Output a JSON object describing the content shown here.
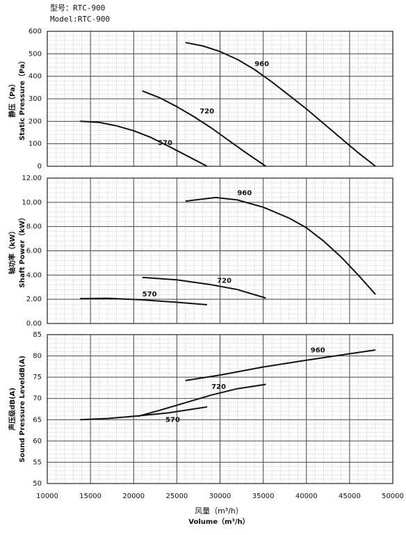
{
  "chart_data": [
    {
      "type": "line",
      "title": "型号：RTC-900",
      "subtitle": "Model:RTC-900",
      "ylabel_cn": "静压（Pa）",
      "ylabel": "Static Pressure（Pa）",
      "xlim": [
        10000,
        50000
      ],
      "xticks": [
        10000,
        15000,
        20000,
        25000,
        30000,
        35000,
        40000,
        45000,
        50000
      ],
      "ylim": [
        0,
        600
      ],
      "yticks": [
        0,
        100,
        200,
        300,
        400,
        500,
        600
      ],
      "grid": true,
      "series": [
        {
          "name": "960",
          "color": "#111111",
          "x": [
            26000,
            28000,
            30000,
            32000,
            34000,
            36000,
            38000,
            40000,
            42000,
            44000,
            46000,
            48000
          ],
          "values": [
            550,
            535,
            510,
            475,
            430,
            375,
            315,
            255,
            190,
            125,
            60,
            0
          ]
        },
        {
          "name": "720",
          "color": "#111111",
          "x": [
            21000,
            23000,
            25000,
            27000,
            29000,
            31000,
            33000,
            35300
          ],
          "values": [
            335,
            305,
            265,
            220,
            170,
            115,
            60,
            0
          ]
        },
        {
          "name": "570",
          "color": "#111111",
          "x": [
            13800,
            16000,
            18000,
            20000,
            22000,
            24000,
            26000,
            28500
          ],
          "values": [
            200,
            195,
            180,
            158,
            128,
            90,
            50,
            0
          ]
        }
      ]
    },
    {
      "type": "line",
      "ylabel_cn": "轴功率（kW）",
      "ylabel": "Shaft Power（kW）",
      "xlim": [
        10000,
        50000
      ],
      "xticks": [
        10000,
        15000,
        20000,
        25000,
        30000,
        35000,
        40000,
        45000,
        50000
      ],
      "ylim": [
        0,
        12
      ],
      "yticks": [
        {
          "value": 0,
          "label": "0.00"
        },
        {
          "value": 2,
          "label": "2.00"
        },
        {
          "value": 4,
          "label": "4.00"
        },
        {
          "value": 6,
          "label": "6.00"
        },
        {
          "value": 8,
          "label": "8.00"
        },
        {
          "value": 10,
          "label": "10.00"
        },
        {
          "value": 12,
          "label": "12.00"
        }
      ],
      "grid": true,
      "series": [
        {
          "name": "960",
          "color": "#111111",
          "x": [
            26000,
            29500,
            32000,
            35000,
            38000,
            40000,
            42000,
            44000,
            46000,
            48000
          ],
          "values": [
            10.1,
            10.4,
            10.2,
            9.6,
            8.7,
            7.9,
            6.8,
            5.5,
            4.0,
            2.4
          ]
        },
        {
          "name": "720",
          "color": "#111111",
          "x": [
            21000,
            25000,
            29000,
            32000,
            35300
          ],
          "values": [
            3.8,
            3.6,
            3.2,
            2.8,
            2.1
          ]
        },
        {
          "name": "570",
          "color": "#111111",
          "x": [
            13800,
            17000,
            21000,
            25000,
            28500
          ],
          "values": [
            2.05,
            2.08,
            1.95,
            1.75,
            1.55
          ]
        }
      ]
    },
    {
      "type": "line",
      "ylabel_cn": "声压级dB(A)",
      "ylabel": "Sound Pressure LeveldB(A)",
      "xlabel_cn": "风量（m³/h）",
      "xlabel": "Volume（m³/h）",
      "xlim": [
        10000,
        50000
      ],
      "xticks": [
        10000,
        15000,
        20000,
        25000,
        30000,
        35000,
        40000,
        45000,
        50000
      ],
      "ylim": [
        50,
        85
      ],
      "yticks": [
        50,
        55,
        60,
        65,
        70,
        75,
        80,
        85
      ],
      "grid": true,
      "series": [
        {
          "name": "960",
          "color": "#111111",
          "x": [
            26000,
            30000,
            35000,
            40000,
            45000,
            48000
          ],
          "values": [
            74.2,
            75.5,
            77.4,
            79.0,
            80.5,
            81.4
          ]
        },
        {
          "name": "720",
          "color": "#111111",
          "x": [
            20500,
            23000,
            26000,
            29000,
            32000,
            35300
          ],
          "values": [
            65.8,
            67.2,
            69.0,
            70.8,
            72.3,
            73.3
          ]
        },
        {
          "name": "570",
          "color": "#111111",
          "x": [
            13800,
            17000,
            20000,
            24000,
            28500
          ],
          "values": [
            65.0,
            65.3,
            65.8,
            66.6,
            68.0
          ]
        }
      ]
    }
  ]
}
